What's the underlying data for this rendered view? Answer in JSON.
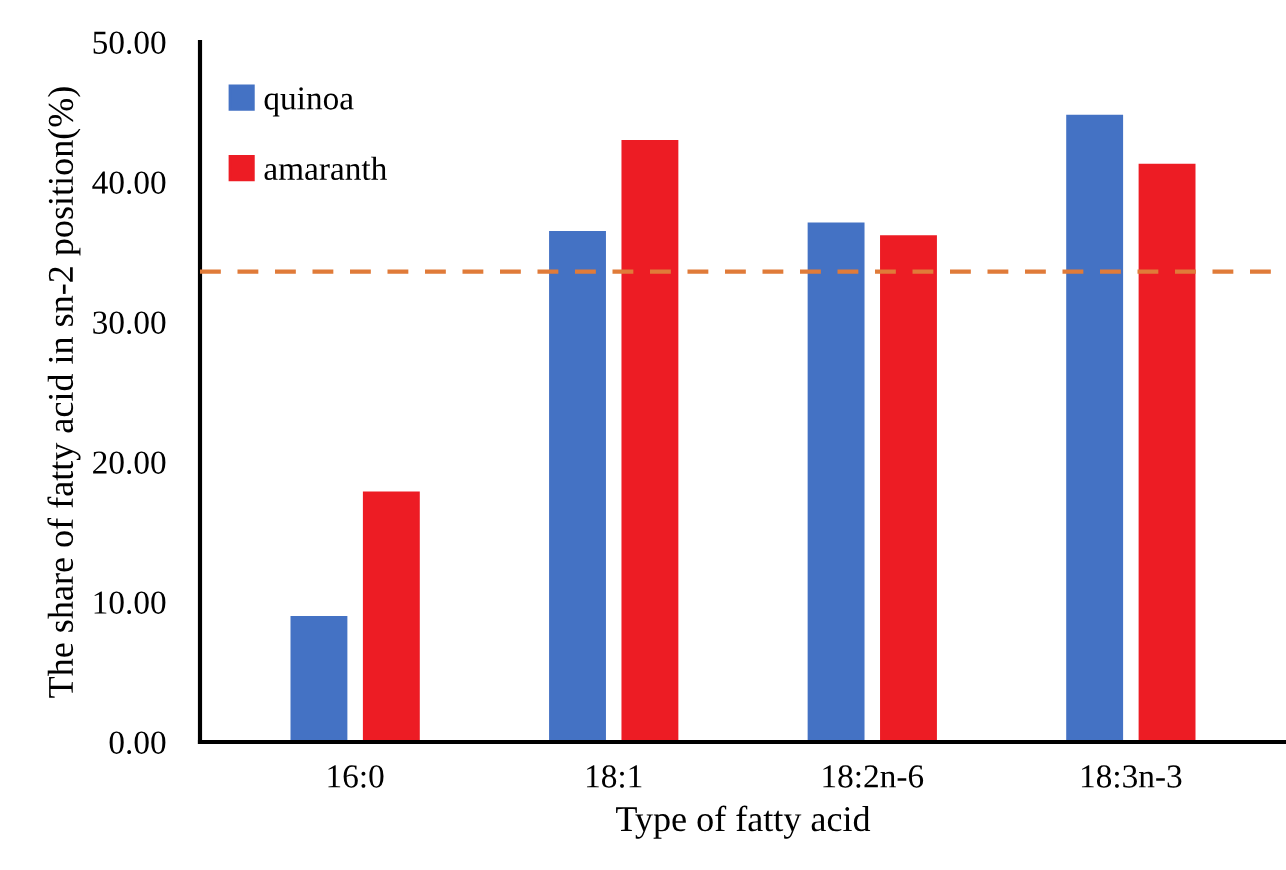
{
  "chart_data": {
    "type": "bar",
    "xlabel": "Type of fatty acid",
    "ylabel": "The share of fatty acid in sn-2 position(%)",
    "categories": [
      "16:0",
      "18:1",
      "18:2n-6",
      "18:3n-3"
    ],
    "series": [
      {
        "name": "quinoa",
        "color": "#4472c4",
        "values": [
          9.0,
          36.5,
          37.1,
          44.8
        ]
      },
      {
        "name": "amaranth",
        "color": "#ed1c24",
        "values": [
          17.9,
          43.0,
          36.2,
          41.3
        ]
      }
    ],
    "ylim": [
      0,
      50
    ],
    "yticks": [
      {
        "value": 0,
        "label": "0.00"
      },
      {
        "value": 10,
        "label": "10.00"
      },
      {
        "value": 20,
        "label": "20.00"
      },
      {
        "value": 30,
        "label": "30.00"
      },
      {
        "value": 40,
        "label": "40.00"
      },
      {
        "value": 50,
        "label": "50.00"
      }
    ],
    "ref_lines": [
      {
        "axis": "y",
        "value": 33.6,
        "label": null,
        "color": "#e07b39",
        "line_style": "dashed"
      }
    ],
    "legend": "top left",
    "grid": false
  }
}
